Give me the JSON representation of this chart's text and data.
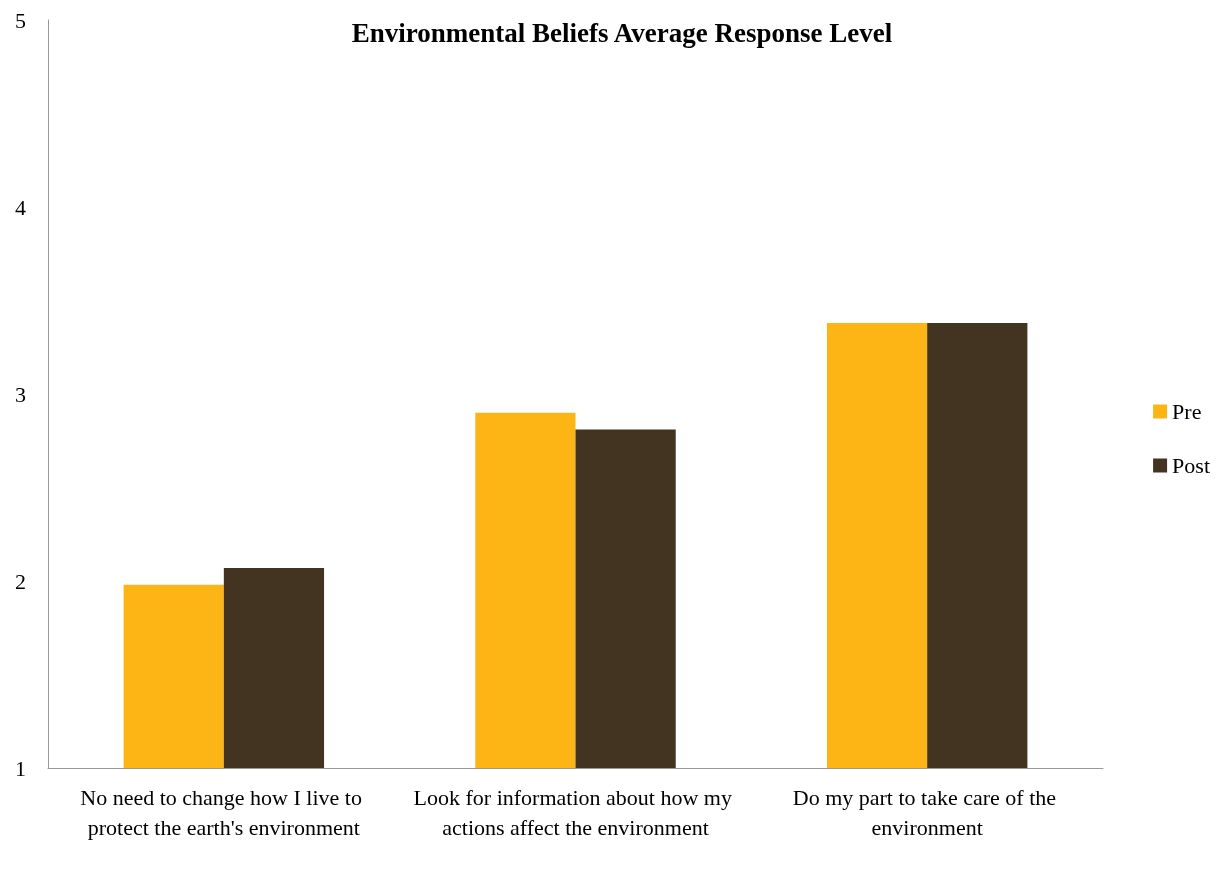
{
  "chart_data": {
    "type": "bar",
    "title": "Environmental Beliefs Average Response Level",
    "categories": [
      "No need to change how I live to protect the earth's environment",
      "Look for information about how my actions affect the environment",
      "Do my part to take care of the environment"
    ],
    "series": [
      {
        "name": "Pre",
        "color": "#fdb515",
        "values": [
          1.98,
          2.9,
          3.38
        ]
      },
      {
        "name": "Post",
        "color": "#433321",
        "values": [
          2.07,
          2.81,
          3.38
        ]
      }
    ],
    "ylim": [
      1,
      5
    ],
    "yticks": [
      1,
      2,
      3,
      4,
      5
    ],
    "grid": false,
    "legend": "right"
  }
}
